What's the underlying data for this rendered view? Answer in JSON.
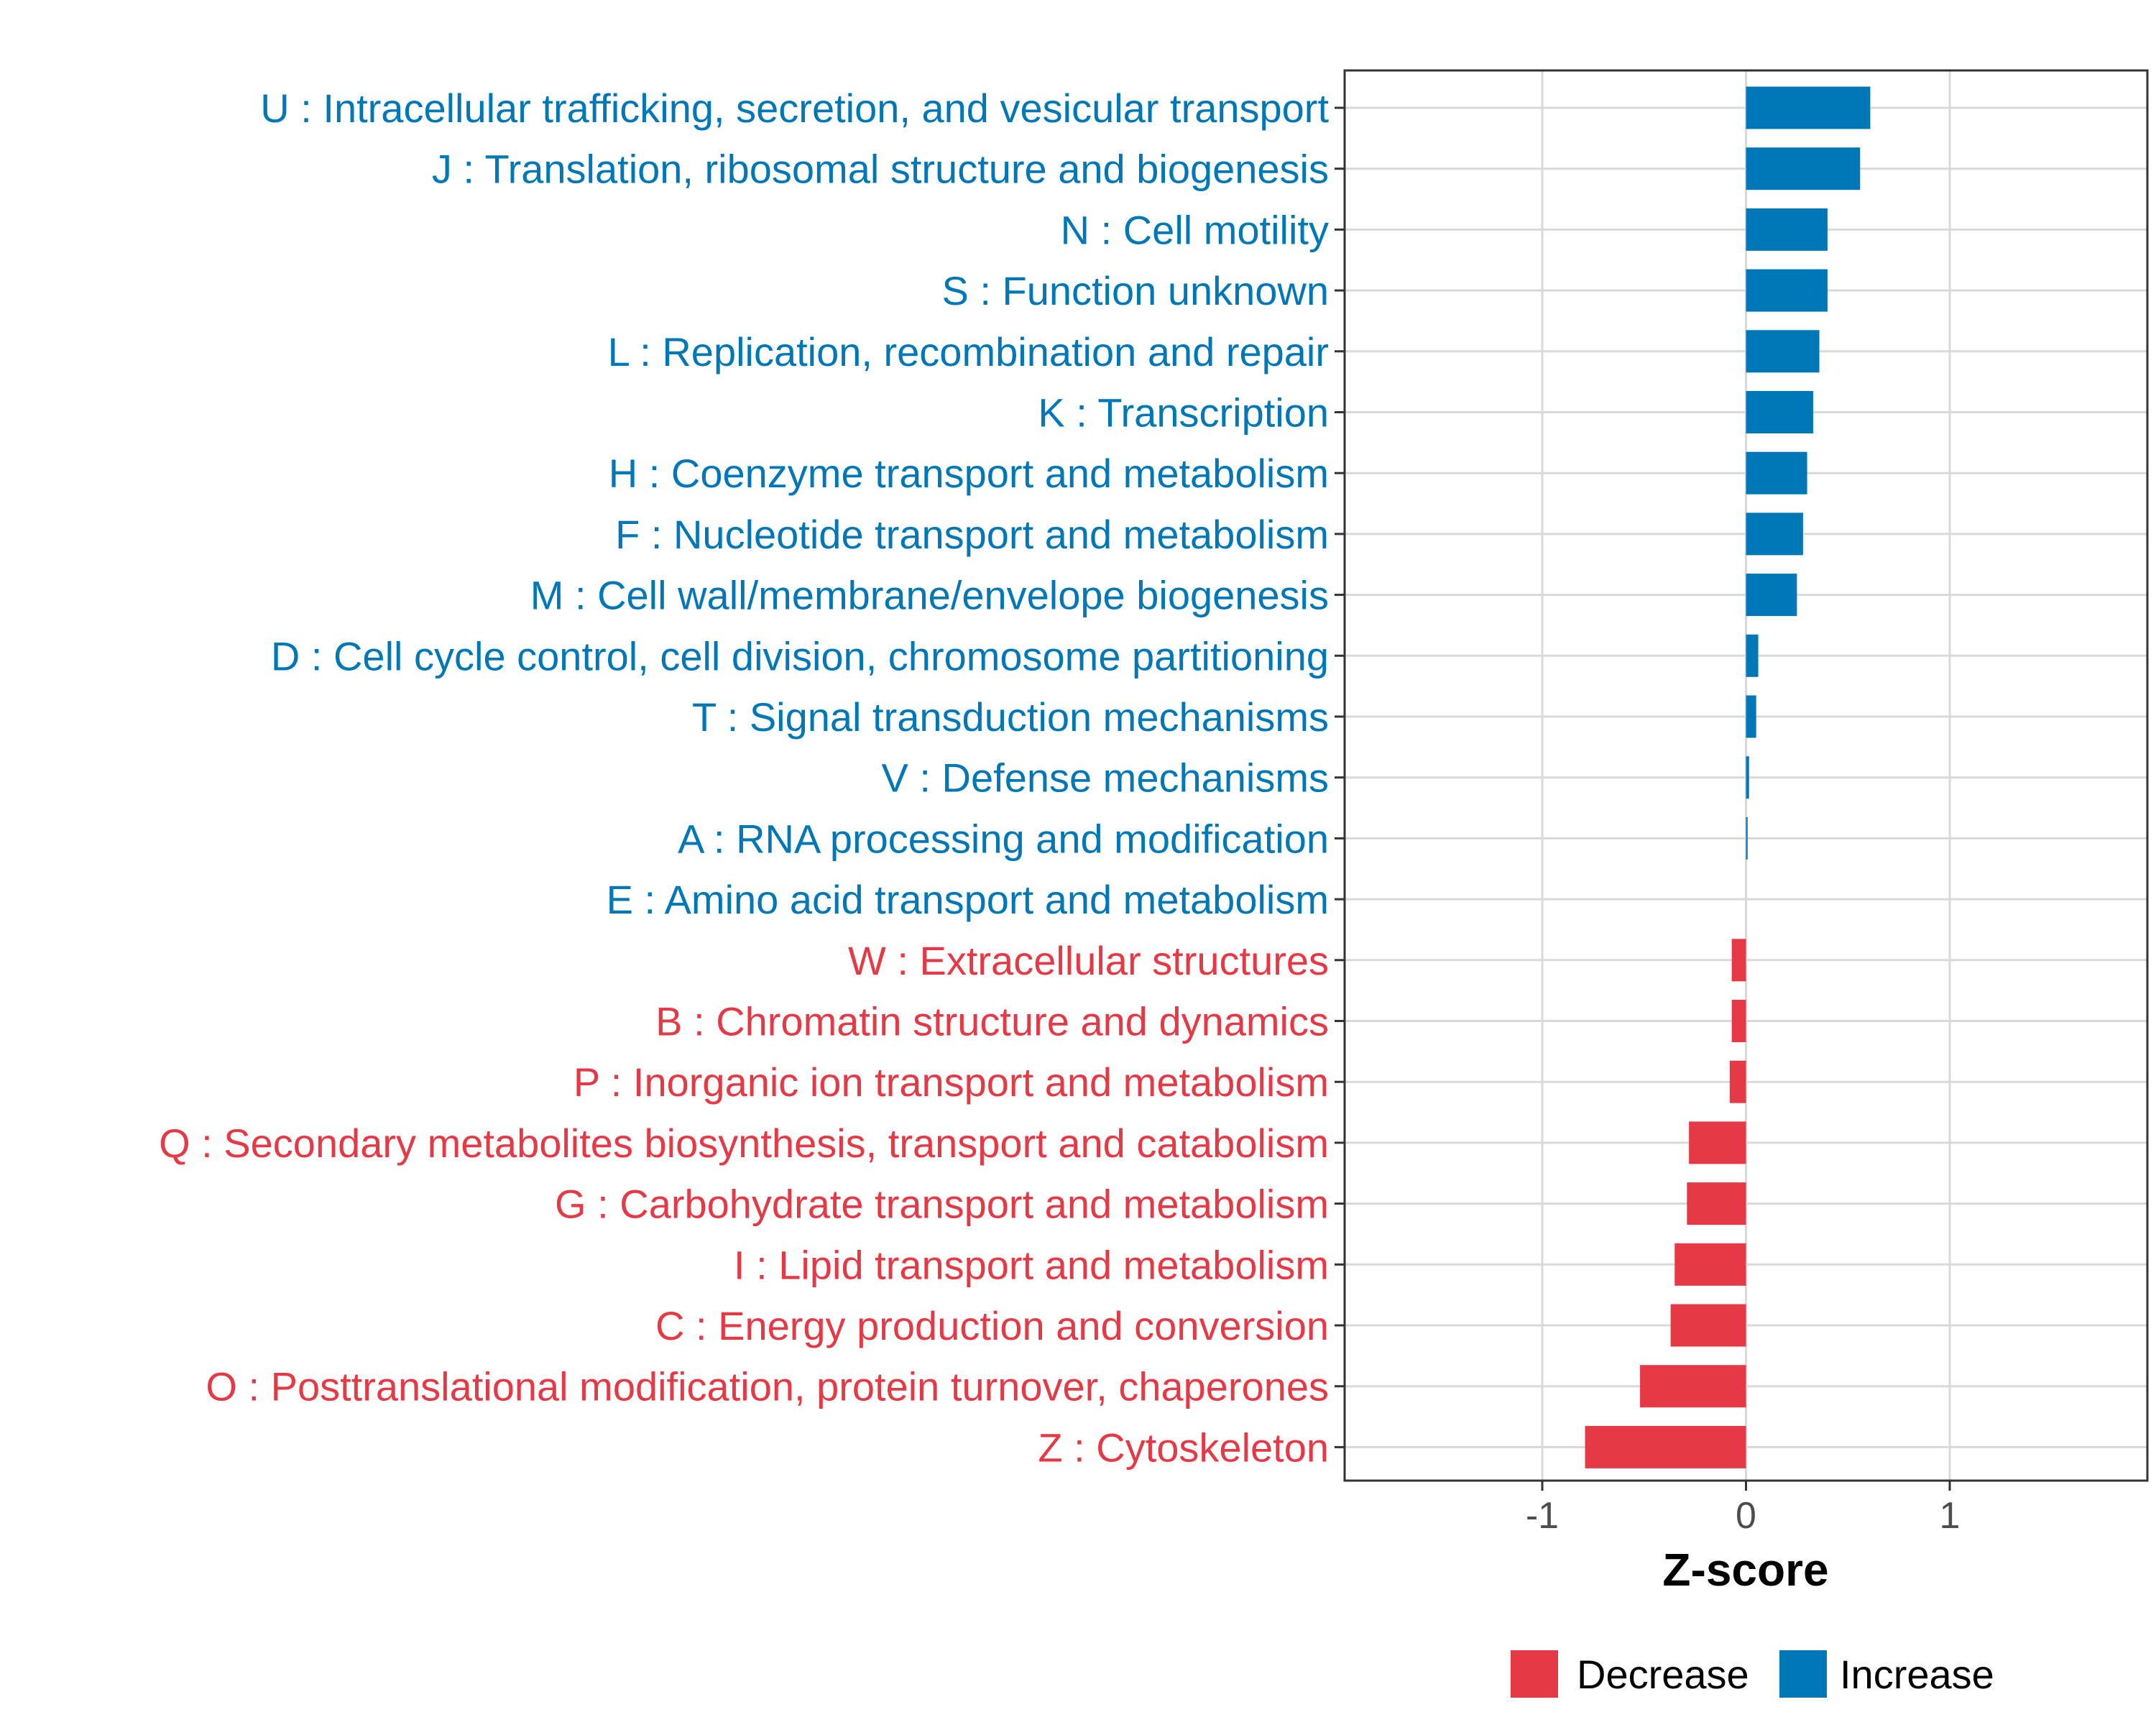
{
  "chart_data": {
    "type": "bar",
    "orientation": "horizontal",
    "xlabel": "Z-score",
    "xlim": [
      -1.97,
      1.97
    ],
    "xticks": [
      -1,
      0,
      1
    ],
    "xtick_labels": [
      "-1",
      "0",
      "1"
    ],
    "grid": true,
    "legend_position": "bottom",
    "colors": {
      "Decrease": "#e63946",
      "Increase": "#0077b6"
    },
    "legend": [
      {
        "label": "Decrease",
        "color": "#e63946"
      },
      {
        "label": "Increase",
        "color": "#0077b6"
      }
    ],
    "categories": [
      {
        "label": "U : Intracellular trafficking, secretion, and vesicular transport",
        "value": 0.61,
        "group": "Increase"
      },
      {
        "label": "J : Translation, ribosomal structure and biogenesis",
        "value": 0.56,
        "group": "Increase"
      },
      {
        "label": "N : Cell motility",
        "value": 0.4,
        "group": "Increase"
      },
      {
        "label": "S : Function unknown",
        "value": 0.4,
        "group": "Increase"
      },
      {
        "label": "L : Replication, recombination and repair",
        "value": 0.36,
        "group": "Increase"
      },
      {
        "label": "K : Transcription",
        "value": 0.33,
        "group": "Increase"
      },
      {
        "label": "H : Coenzyme transport and metabolism",
        "value": 0.3,
        "group": "Increase"
      },
      {
        "label": "F : Nucleotide transport and metabolism",
        "value": 0.28,
        "group": "Increase"
      },
      {
        "label": "M : Cell wall/membrane/envelope biogenesis",
        "value": 0.25,
        "group": "Increase"
      },
      {
        "label": "D : Cell cycle control, cell division, chromosome partitioning",
        "value": 0.06,
        "group": "Increase"
      },
      {
        "label": "T : Signal transduction mechanisms",
        "value": 0.05,
        "group": "Increase"
      },
      {
        "label": "V : Defense mechanisms",
        "value": 0.015,
        "group": "Increase"
      },
      {
        "label": "A : RNA processing and modification",
        "value": 0.008,
        "group": "Increase"
      },
      {
        "label": "E : Amino acid transport and metabolism",
        "value": 0.0,
        "group": "Increase"
      },
      {
        "label": "W : Extracellular structures",
        "value": -0.07,
        "group": "Decrease"
      },
      {
        "label": "B : Chromatin structure and dynamics",
        "value": -0.07,
        "group": "Decrease"
      },
      {
        "label": "P : Inorganic ion transport and metabolism",
        "value": -0.08,
        "group": "Decrease"
      },
      {
        "label": "Q : Secondary metabolites biosynthesis, transport and catabolism",
        "value": -0.28,
        "group": "Decrease"
      },
      {
        "label": "G : Carbohydrate transport and metabolism",
        "value": -0.29,
        "group": "Decrease"
      },
      {
        "label": "I : Lipid transport and metabolism",
        "value": -0.35,
        "group": "Decrease"
      },
      {
        "label": "C : Energy production and conversion",
        "value": -0.37,
        "group": "Decrease"
      },
      {
        "label": "O : Posttranslational modification, protein turnover, chaperones",
        "value": -0.52,
        "group": "Decrease"
      },
      {
        "label": "Z : Cytoskeleton",
        "value": -0.79,
        "group": "Decrease"
      }
    ]
  }
}
